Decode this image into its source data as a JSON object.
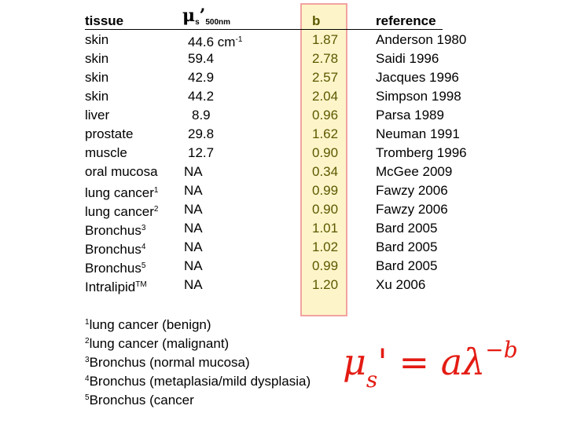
{
  "header": {
    "tissue": "tissue",
    "mu_symbol": "μ",
    "mu_sub": "s",
    "mu_prime": "’",
    "mu_wavelength": "500nm",
    "b": "b",
    "reference": "reference"
  },
  "rows": [
    {
      "tissue": "skin",
      "tissue_sup": "",
      "mu": "44.6 cm",
      "mu_sup": "-1",
      "b": "1.87",
      "reference": "Anderson 1980"
    },
    {
      "tissue": "skin",
      "tissue_sup": "",
      "mu": "59.4",
      "mu_sup": "",
      "b": "2.78",
      "reference": "Saidi 1996"
    },
    {
      "tissue": "skin",
      "tissue_sup": "",
      "mu": "42.9",
      "mu_sup": "",
      "b": "2.57",
      "reference": "Jacques 1996"
    },
    {
      "tissue": "skin",
      "tissue_sup": "",
      "mu": "44.2",
      "mu_sup": "",
      "b": "2.04",
      "reference": "Simpson 1998"
    },
    {
      "tissue": "liver",
      "tissue_sup": "",
      "mu": "8.9",
      "mu_sup": "",
      "b": "0.96",
      "reference": "Parsa 1989"
    },
    {
      "tissue": "prostate",
      "tissue_sup": "",
      "mu": "29.8",
      "mu_sup": "",
      "b": "1.62",
      "reference": "Neuman 1991"
    },
    {
      "tissue": "muscle",
      "tissue_sup": "",
      "mu": "12.7",
      "mu_sup": "",
      "b": "0.90",
      "reference": "Tromberg 1996"
    },
    {
      "tissue": "oral mucosa",
      "tissue_sup": "",
      "mu": "NA",
      "mu_sup": "",
      "b": "0.34",
      "reference": "McGee 2009"
    },
    {
      "tissue": "lung cancer",
      "tissue_sup": "1",
      "mu": "NA",
      "mu_sup": "",
      "b": "0.99",
      "reference": "Fawzy 2006"
    },
    {
      "tissue": "lung cancer",
      "tissue_sup": "2",
      "mu": "NA",
      "mu_sup": "",
      "b": "0.90",
      "reference": "Fawzy 2006"
    },
    {
      "tissue": "Bronchus",
      "tissue_sup": "3",
      "mu": "NA",
      "mu_sup": "",
      "b": "1.01",
      "reference": "Bard 2005"
    },
    {
      "tissue": "Bronchus",
      "tissue_sup": "4",
      "mu": "NA",
      "mu_sup": "",
      "b": "1.02",
      "reference": "Bard 2005"
    },
    {
      "tissue": "Bronchus",
      "tissue_sup": "5",
      "mu": "NA",
      "mu_sup": "",
      "b": "0.99",
      "reference": "Bard 2005"
    },
    {
      "tissue": "Intralipid",
      "tissue_sup": "TM",
      "mu": "NA",
      "mu_sup": "",
      "b": "1.20",
      "reference": "Xu 2006"
    }
  ],
  "footnotes": [
    {
      "mark": "1",
      "text": "lung cancer (benign)"
    },
    {
      "mark": "2",
      "text": "lung cancer (malignant)"
    },
    {
      "mark": "3",
      "text": "Bronchus (normal mucosa)"
    },
    {
      "mark": "4",
      "text": "Bronchus (metaplasia/mild dysplasia)"
    },
    {
      "mark": "5",
      "text": "Bronchus (cancer"
    }
  ],
  "formula": {
    "mu": "μ",
    "sub": "s",
    "rest": "' = aλ",
    "exponent": "−b"
  },
  "colors": {
    "formula": "#e41b13",
    "b_column_text": "#5d5800",
    "b_column_fill": "#fdf5c9",
    "b_column_border": "#f2a3a0"
  }
}
